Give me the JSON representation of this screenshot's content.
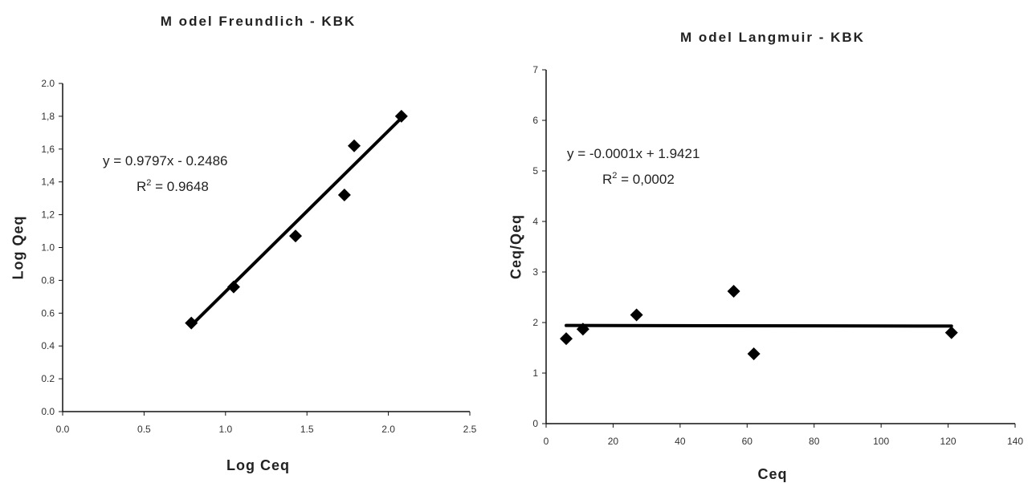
{
  "chart_data": [
    {
      "type": "scatter",
      "title": "M odel Freundlich - KBK",
      "xlabel": "Log Ceq",
      "ylabel": "Log Qeq",
      "xlim": [
        0.0,
        2.5
      ],
      "ylim": [
        0.0,
        2.0
      ],
      "xticks": [
        "0.0",
        "0.5",
        "1.0",
        "1.5",
        "2.0",
        "2.5"
      ],
      "yticks": [
        "0.0",
        "0.2",
        "0.4",
        "0.6",
        "0.8",
        "1.0",
        "1,2",
        "1,4",
        "1,6",
        "1,8",
        "2.0"
      ],
      "x": [
        0.79,
        1.05,
        1.43,
        1.73,
        1.79,
        2.08
      ],
      "y": [
        0.54,
        0.76,
        1.07,
        1.32,
        1.62,
        1.8
      ],
      "trendline": {
        "slope": 0.9797,
        "intercept": -0.2486,
        "x_range": [
          0.79,
          2.08
        ]
      },
      "annotations": {
        "equation": "y = 0.9797x - 0.2486",
        "r2_prefix": "R",
        "r2_value": " = 0.9648"
      },
      "grid": false,
      "legend": "none"
    },
    {
      "type": "scatter",
      "title": "M odel Langmuir - KBK",
      "xlabel": "Ceq",
      "ylabel": "Ceq/Qeq",
      "xlim": [
        0,
        140
      ],
      "ylim": [
        0,
        7
      ],
      "xticks": [
        "0",
        "20",
        "40",
        "60",
        "80",
        "100",
        "120",
        "140"
      ],
      "yticks": [
        "0",
        "1",
        "2",
        "3",
        "4",
        "5",
        "6",
        "7"
      ],
      "x": [
        6,
        11,
        27,
        56,
        62,
        121
      ],
      "y": [
        1.68,
        1.87,
        2.15,
        2.62,
        1.38,
        1.8
      ],
      "trendline": {
        "slope": -0.0001,
        "intercept": 1.9421,
        "x_range": [
          6,
          121
        ]
      },
      "annotations": {
        "equation": "y = -0.0001x + 1.9421",
        "r2_prefix": "R",
        "r2_value": " = 0,0002"
      },
      "grid": false,
      "legend": "none"
    }
  ]
}
